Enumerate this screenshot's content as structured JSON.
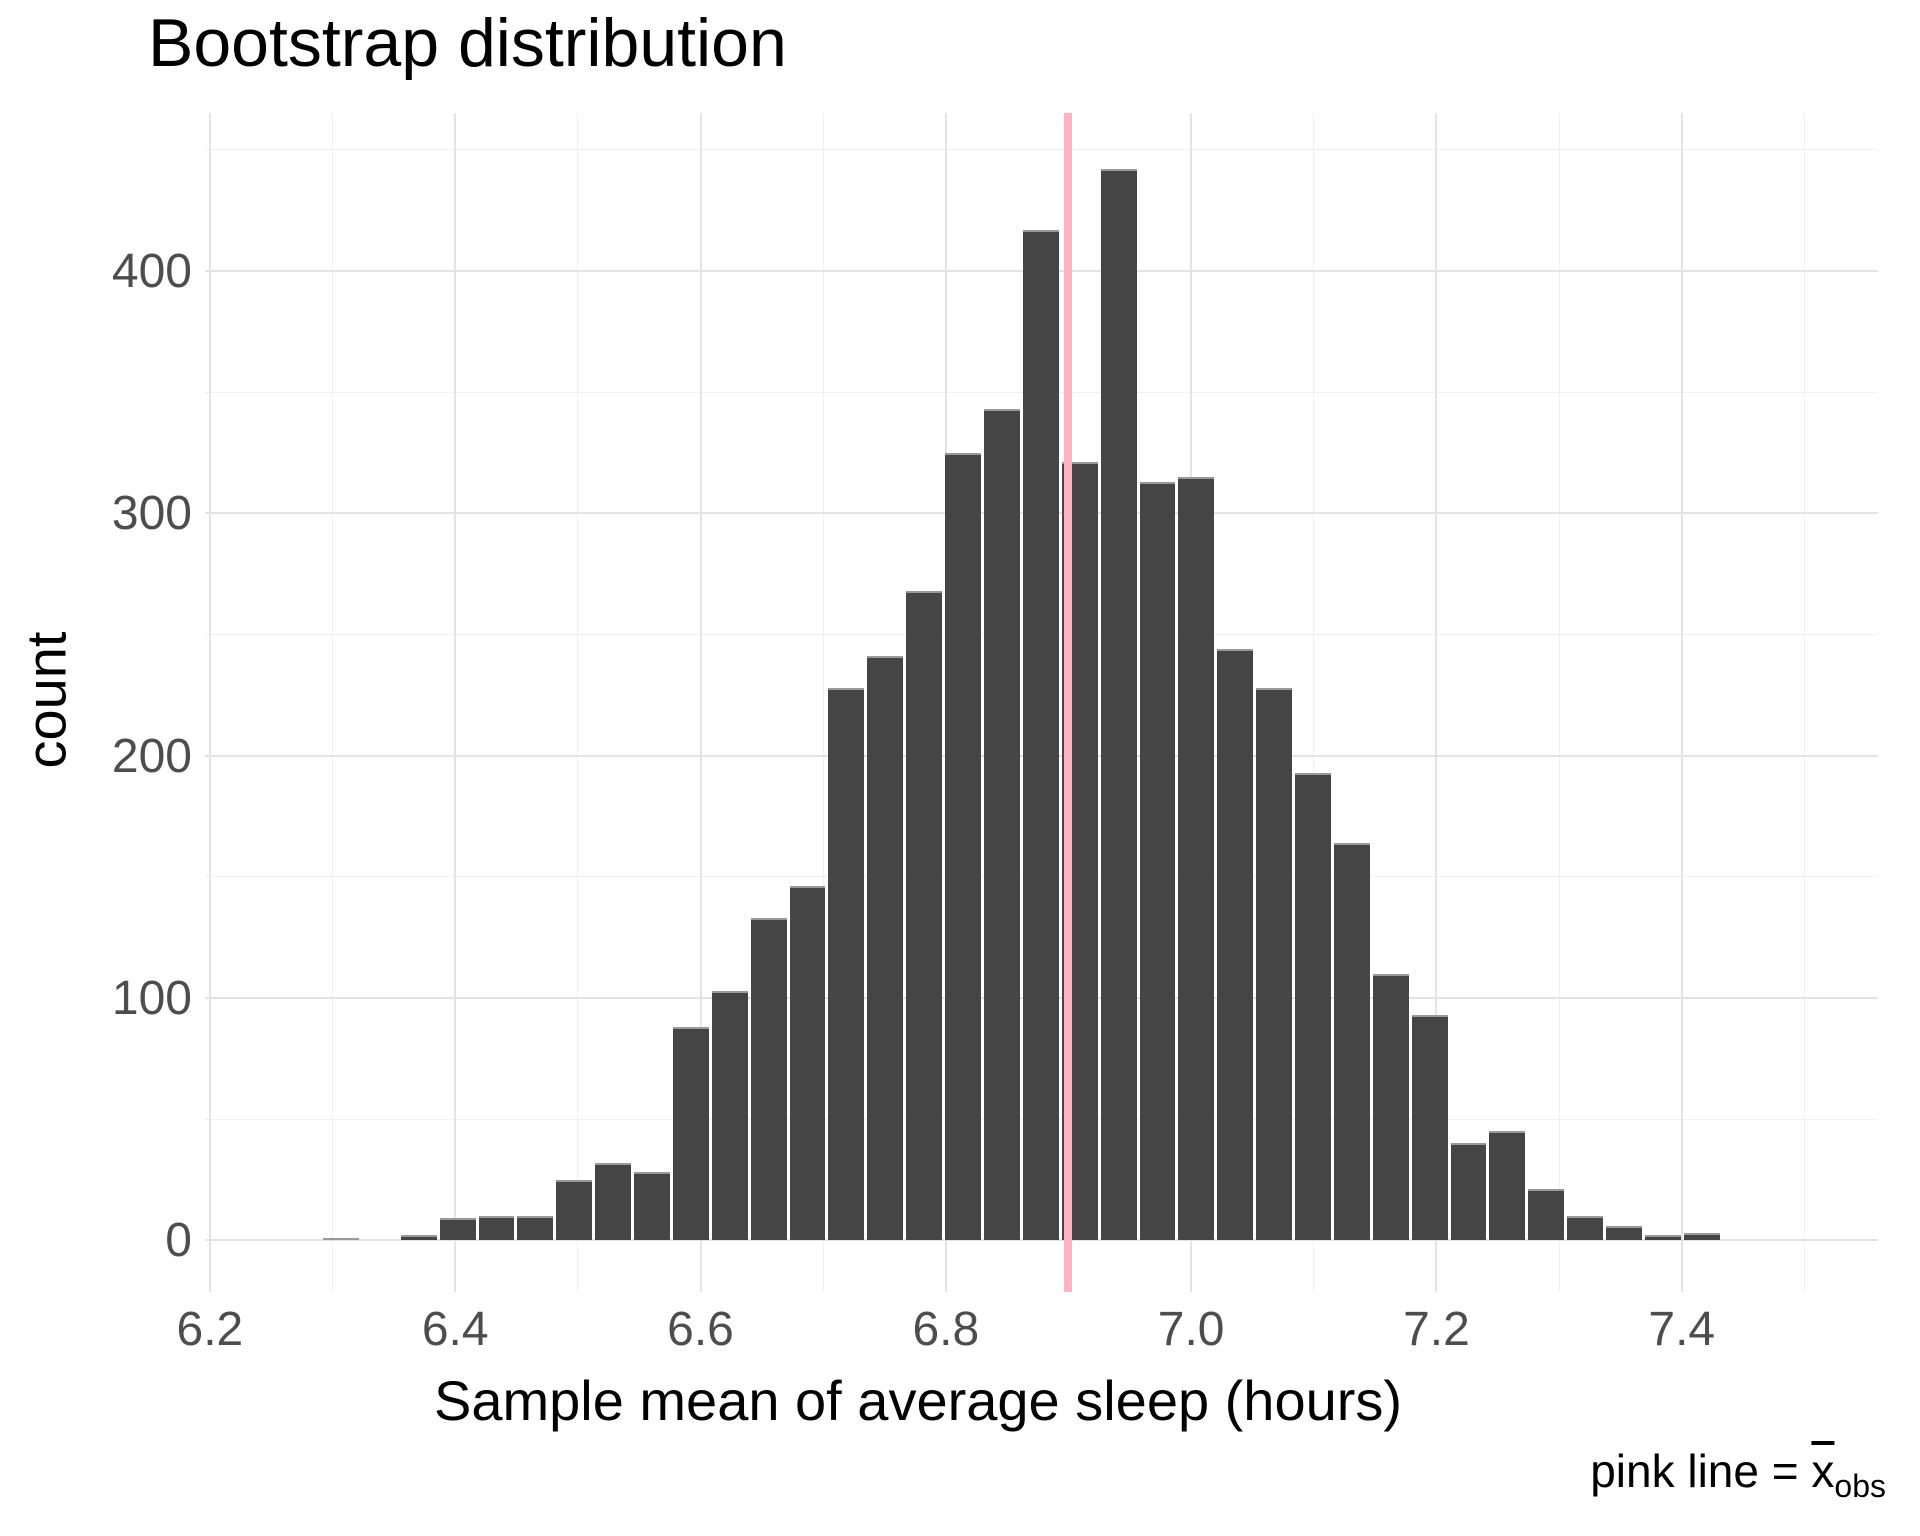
{
  "title": "Bootstrap distribution",
  "x_axis": {
    "label": "Sample mean of average sleep (hours)",
    "tick_labels": [
      "6.2",
      "6.4",
      "6.6",
      "6.8",
      "7.0",
      "7.2",
      "7.4"
    ],
    "tick_values": [
      6.2,
      6.4,
      6.6,
      6.8,
      7.0,
      7.2,
      7.4
    ],
    "minor_tick_values": [
      6.3,
      6.5,
      6.7,
      6.9,
      7.1,
      7.3,
      7.5
    ]
  },
  "y_axis": {
    "label": "count",
    "tick_labels": [
      "0",
      "100",
      "200",
      "300",
      "400"
    ],
    "tick_values": [
      0,
      100,
      200,
      300,
      400
    ],
    "minor_tick_values": [
      50,
      150,
      250,
      350,
      450
    ]
  },
  "caption": {
    "prefix": "pink line = ",
    "symbol_base": "x",
    "symbol_subscript": "obs"
  },
  "colors": {
    "background": "#ffffff",
    "bar_fill": "#454545",
    "bar_gap": "#ffffff",
    "pink_line": "#ffb3c1",
    "grid_major": "#e3e3e3",
    "grid_minor": "#f0f0f0",
    "tick_label": "#4d4d4d",
    "text": "#000000"
  },
  "chart_data": {
    "type": "bar",
    "subtype": "histogram",
    "title": "Bootstrap distribution",
    "xlabel": "Sample mean of average sleep (hours)",
    "ylabel": "count",
    "bin_start": 6.291,
    "bin_width": 0.0317,
    "counts": [
      1,
      0,
      2,
      9,
      10,
      10,
      25,
      32,
      28,
      88,
      103,
      133,
      146,
      228,
      241,
      268,
      325,
      343,
      417,
      321,
      442,
      313,
      315,
      244,
      228,
      193,
      164,
      110,
      93,
      40,
      45,
      21,
      10,
      6,
      2,
      3
    ],
    "vline": {
      "x": 6.9,
      "meaning": "observed sample mean (pink line)",
      "color": "#ffb3c1"
    },
    "x_ticks": [
      6.2,
      6.4,
      6.6,
      6.8,
      7.0,
      7.2,
      7.4
    ],
    "y_ticks": [
      0,
      100,
      200,
      300,
      400
    ],
    "xlim": [
      6.196,
      7.56
    ],
    "ylim": [
      -21.4,
      465.2
    ],
    "grid": true,
    "legend": false
  }
}
